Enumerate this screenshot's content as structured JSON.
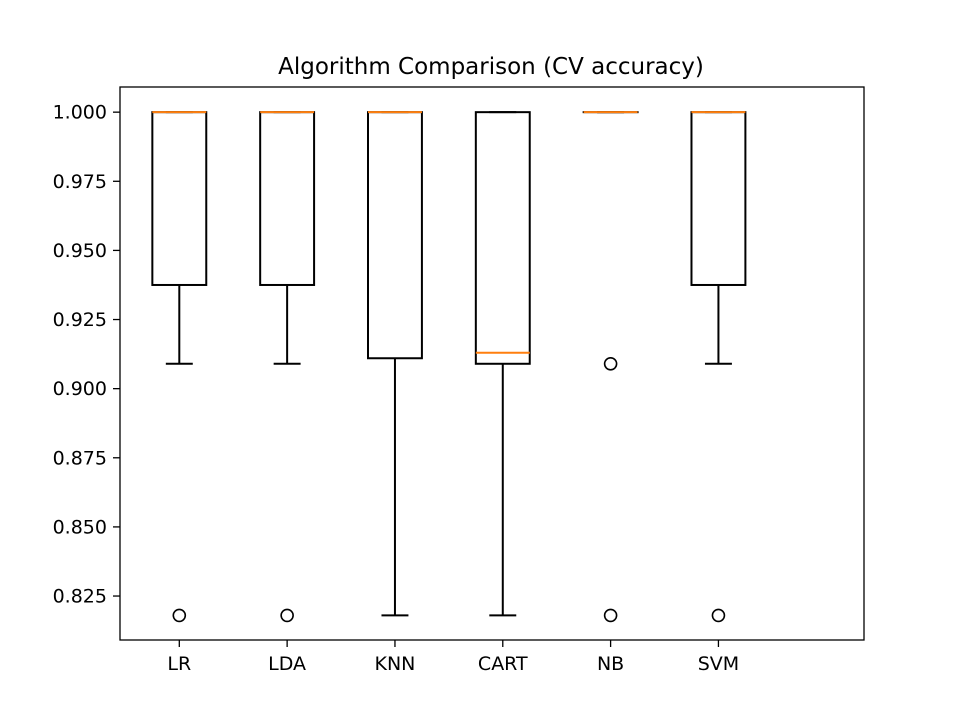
{
  "chart_data": {
    "type": "box",
    "title": "Algorithm Comparison (CV accuracy)",
    "xlabel": "",
    "ylabel": "",
    "categories": [
      "LR",
      "LDA",
      "KNN",
      "CART",
      "NB",
      "SVM"
    ],
    "boxes": [
      {
        "label": "LR",
        "whisker_low": 0.909,
        "q1": 0.9375,
        "median": 1.0,
        "q3": 1.0,
        "whisker_high": 1.0,
        "outliers": [
          0.818
        ]
      },
      {
        "label": "LDA",
        "whisker_low": 0.909,
        "q1": 0.9375,
        "median": 1.0,
        "q3": 1.0,
        "whisker_high": 1.0,
        "outliers": [
          0.818
        ]
      },
      {
        "label": "KNN",
        "whisker_low": 0.818,
        "q1": 0.911,
        "median": 1.0,
        "q3": 1.0,
        "whisker_high": 1.0,
        "outliers": []
      },
      {
        "label": "CART",
        "whisker_low": 0.818,
        "q1": 0.909,
        "median": 0.913,
        "q3": 1.0,
        "whisker_high": 1.0,
        "outliers": []
      },
      {
        "label": "NB",
        "whisker_low": 1.0,
        "q1": 1.0,
        "median": 1.0,
        "q3": 1.0,
        "whisker_high": 1.0,
        "outliers": [
          0.909,
          0.818
        ]
      },
      {
        "label": "SVM",
        "whisker_low": 0.909,
        "q1": 0.9375,
        "median": 1.0,
        "q3": 1.0,
        "whisker_high": 1.0,
        "outliers": [
          0.818
        ]
      }
    ],
    "yticks": [
      0.825,
      0.85,
      0.875,
      0.9,
      0.925,
      0.95,
      0.975,
      1.0
    ],
    "ytick_labels": [
      "0.825",
      "0.850",
      "0.875",
      "0.900",
      "0.925",
      "0.950",
      "0.975",
      "1.000"
    ],
    "ylim": [
      0.8091,
      1.0091
    ],
    "grid": false,
    "legend": "none",
    "colors": {
      "box": "#000000",
      "median": "#ff7f0e",
      "outlier": "#000000"
    }
  }
}
